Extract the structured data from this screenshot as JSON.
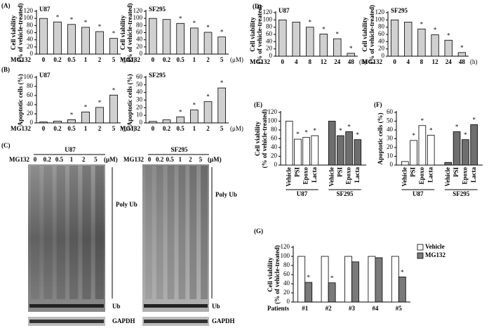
{
  "panel_labels": [
    "(A)",
    "(B)",
    "(C)",
    "(D)",
    "(E)",
    "(F)",
    "(G)"
  ],
  "chart_data": [
    {
      "type": "bar",
      "title": "U87",
      "categories": [
        "0",
        "0.2",
        "0.5",
        "1",
        "2",
        "5"
      ],
      "values": [
        100,
        90,
        83,
        75,
        63,
        44
      ],
      "marker_labels": [
        null,
        "*",
        "*",
        "*",
        "*",
        "*"
      ],
      "color": "#d0d0d0",
      "ylim": [
        0,
        120
      ],
      "yticks": [
        0,
        20,
        40,
        60,
        80,
        100,
        120
      ],
      "ylabel": [
        "Cell viability",
        "(% of vehicle-treated)"
      ],
      "xlabel": "MG132",
      "xunit": "(μM)"
    },
    {
      "type": "bar",
      "title": "SF295",
      "categories": [
        "0",
        "0.2",
        "0.5",
        "1",
        "2",
        "5"
      ],
      "values": [
        100,
        97,
        86,
        73,
        61,
        48
      ],
      "marker_labels": [
        null,
        null,
        "*",
        "*",
        "*",
        "*"
      ],
      "color": "#d0d0d0",
      "ylim": [
        0,
        120
      ],
      "yticks": [
        0,
        20,
        40,
        60,
        80,
        100,
        120
      ],
      "ylabel": [
        "Cell viability",
        "(% of vehicle-treated)"
      ],
      "xlabel": "MG132",
      "xunit": "(μM)"
    },
    {
      "type": "bar",
      "title": "U87",
      "categories": [
        "0",
        "0.2",
        "0.5",
        "1",
        "2",
        "5"
      ],
      "values": [
        2,
        4,
        7,
        24,
        34,
        61
      ],
      "marker_labels": [
        null,
        null,
        "*",
        "*",
        "*",
        "*"
      ],
      "color": "#d0d0d0",
      "ylim": [
        0,
        100
      ],
      "yticks": [
        0,
        20,
        40,
        60,
        80,
        100
      ],
      "ylabel": [
        "Apoptotic cells (%)"
      ],
      "xlabel": "MG132",
      "xunit": "(μM)"
    },
    {
      "type": "bar",
      "title": "SF295",
      "categories": [
        "0",
        "0.2",
        "0.5",
        "1",
        "2",
        "5"
      ],
      "values": [
        2,
        4,
        8,
        17,
        28,
        46
      ],
      "marker_labels": [
        null,
        null,
        "*",
        "*",
        "*",
        "*"
      ],
      "color": "#d0d0d0",
      "ylim": [
        0,
        60
      ],
      "yticks": [
        0,
        10,
        20,
        30,
        40,
        50,
        60
      ],
      "ylabel": [
        "Apoptotic cells (%)"
      ],
      "xlabel": "MG132",
      "xunit": "(μM)"
    },
    {
      "type": "bar",
      "title": "U87",
      "categories": [
        "0",
        "4",
        "8",
        "12",
        "24",
        "48"
      ],
      "values": [
        100,
        94,
        80,
        61,
        48,
        8
      ],
      "marker_labels": [
        null,
        null,
        "*",
        "*",
        "*",
        "*"
      ],
      "color": "#d0d0d0",
      "ylim": [
        0,
        120
      ],
      "yticks": [
        0,
        20,
        40,
        60,
        80,
        100,
        120
      ],
      "ylabel": [
        "Cell viability",
        "(% of vehicle-treated)"
      ],
      "xlabel": "MG132",
      "xunit": "(h)"
    },
    {
      "type": "bar",
      "title": "SF295",
      "categories": [
        "0",
        "4",
        "8",
        "12",
        "24",
        "48"
      ],
      "values": [
        100,
        94,
        75,
        59,
        44,
        10
      ],
      "marker_labels": [
        null,
        null,
        "*",
        "*",
        "*",
        "*"
      ],
      "color": "#d0d0d0",
      "ylim": [
        0,
        120
      ],
      "yticks": [
        0,
        20,
        40,
        60,
        80,
        100,
        120
      ],
      "ylabel": [
        "Cell viability",
        "(% of vehicle-treated)"
      ],
      "xlabel": "MG132",
      "xunit": "(h)"
    },
    {
      "type": "bar",
      "categories": [
        "Vehicle",
        "PSI",
        "Epoxo",
        "Lacta"
      ],
      "series": [
        {
          "name": "U87",
          "color": "#ffffff",
          "values": [
            100,
            59,
            63,
            67
          ],
          "marker_labels": [
            null,
            "*",
            "*",
            "*"
          ]
        },
        {
          "name": "SF295",
          "color": "#6e6e6e",
          "values": [
            100,
            67,
            76,
            58
          ],
          "marker_labels": [
            null,
            "*",
            "*",
            "*"
          ]
        }
      ],
      "ylim": [
        0,
        120
      ],
      "yticks": [
        0,
        20,
        40,
        60,
        80,
        100,
        120
      ],
      "ylabel": [
        "Cell viability",
        "(% of vehicle-treated)"
      ]
    },
    {
      "type": "bar",
      "categories": [
        "Vehicle",
        "PSI",
        "Epoxo",
        "Lacta"
      ],
      "series": [
        {
          "name": "U87",
          "color": "#ffffff",
          "values": [
            4,
            28,
            45,
            34
          ],
          "marker_labels": [
            null,
            "*",
            "*",
            "*"
          ]
        },
        {
          "name": "SF295",
          "color": "#6e6e6e",
          "values": [
            3,
            38,
            29,
            46
          ],
          "marker_labels": [
            null,
            "*",
            "*",
            "*"
          ]
        }
      ],
      "ylim": [
        0,
        60
      ],
      "yticks": [
        0,
        10,
        20,
        30,
        40,
        50,
        60
      ],
      "ylabel": [
        "Apoptotic cells (%)"
      ]
    },
    {
      "type": "bar",
      "categories": [
        "#1",
        "#2",
        "#3",
        "#4",
        "#5"
      ],
      "series": [
        {
          "name": "Vehicle",
          "color": "#ffffff",
          "values": [
            100,
            100,
            100,
            100,
            100
          ]
        },
        {
          "name": "MG132",
          "color": "#7a7a7a",
          "values": [
            43,
            42,
            88,
            97,
            55
          ],
          "marker_labels": [
            "*",
            "*",
            null,
            null,
            "*"
          ]
        }
      ],
      "ylim": [
        0,
        120
      ],
      "yticks": [
        0,
        20,
        40,
        60,
        80,
        100,
        120
      ],
      "ylabel": [
        "Cell viability",
        "(% of vehicle-treated)"
      ],
      "xlabel": "Patients",
      "legend": "upper right"
    }
  ],
  "blots": [
    {
      "title": "U87",
      "treatment": "MG132",
      "doses": [
        "0",
        "0.2",
        "0.5",
        "1",
        "2",
        "5"
      ],
      "unit": "(μM)",
      "bands": [
        "Poly Ub",
        "Ub"
      ],
      "loading": "GAPDH"
    },
    {
      "title": "SF295",
      "treatment": "MG132",
      "doses": [
        "0",
        "0.2",
        "0.5",
        "1",
        "2",
        "5"
      ],
      "unit": "(μM)",
      "bands": [
        "Poly Ub",
        "Ub"
      ],
      "loading": "GAPDH"
    }
  ]
}
